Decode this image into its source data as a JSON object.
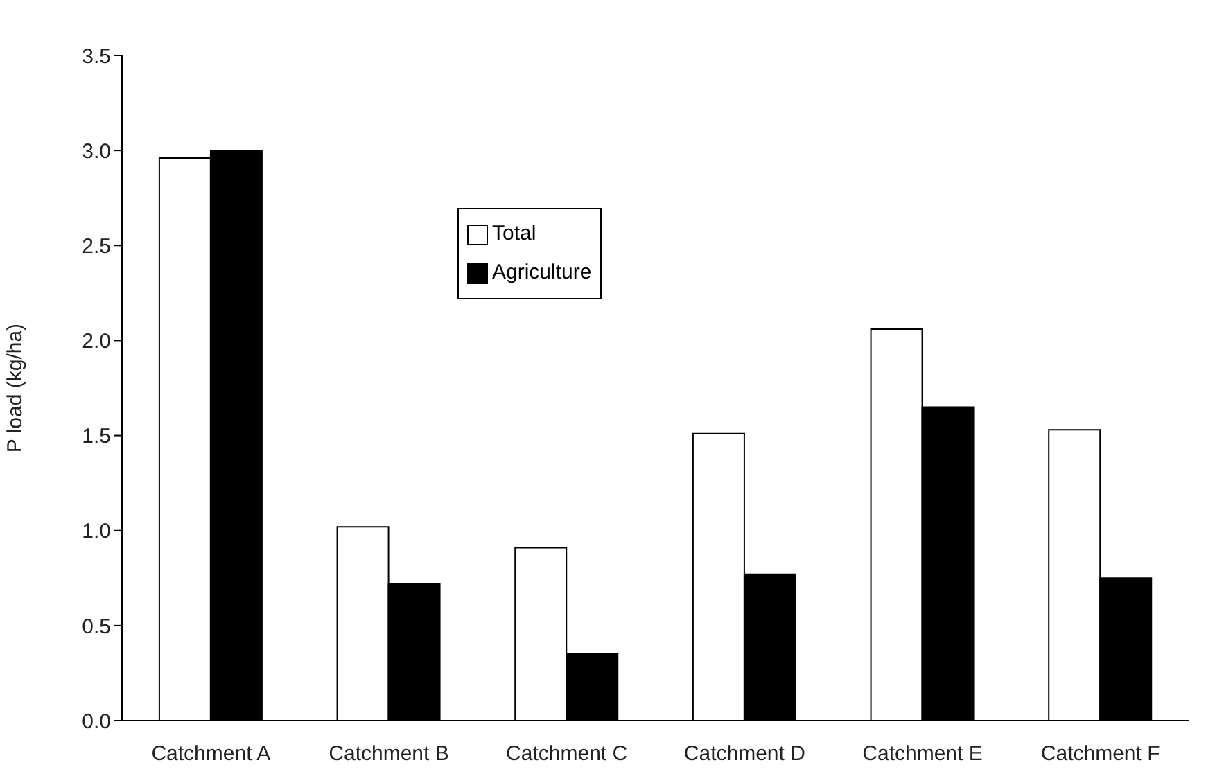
{
  "chart_data": {
    "type": "bar",
    "ylabel": "P load (kg/ha)",
    "categories": [
      "Catchment A",
      "Catchment B",
      "Catchment C",
      "Catchment D",
      "Catchment E",
      "Catchment F"
    ],
    "series": [
      {
        "name": "Total",
        "color": "#ffffff",
        "values": [
          2.96,
          1.02,
          0.91,
          1.51,
          2.06,
          1.53
        ]
      },
      {
        "name": "Agriculture",
        "color": "#000000",
        "values": [
          3.0,
          0.72,
          0.35,
          0.77,
          1.65,
          0.75
        ]
      }
    ],
    "ylim": [
      0,
      3.5
    ],
    "yticks": [
      {
        "value": 0,
        "label": "0.0"
      },
      0.5,
      {
        "value": 1,
        "label": "1.0"
      },
      1.5,
      {
        "value": 2,
        "label": "2.0"
      },
      2.5,
      {
        "value": 3,
        "label": "3.0"
      },
      3.5
    ],
    "grid": false,
    "legend": "top"
  }
}
